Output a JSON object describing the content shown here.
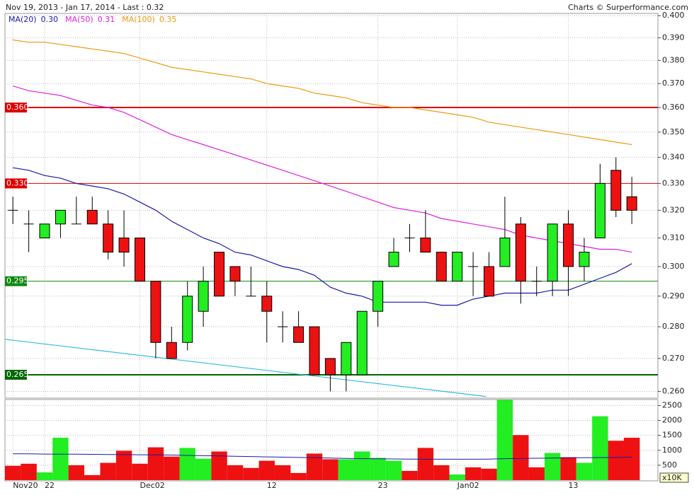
{
  "chart_data": {
    "type": "candlestick",
    "title": "Nov 19, 2013 - Jan 17, 2014 - Last : 0.32",
    "credit": "Charts © Surperformance.com",
    "log_scale": true,
    "grid": true,
    "up_color": "#22ee22",
    "down_color": "#ee1111",
    "categories": [
      "Nov20",
      null,
      "22",
      null,
      null,
      null,
      null,
      null,
      "Dec02",
      null,
      null,
      null,
      null,
      null,
      null,
      null,
      "12",
      null,
      null,
      null,
      null,
      null,
      null,
      "23",
      null,
      null,
      null,
      null,
      "Jan02",
      null,
      null,
      null,
      null,
      null,
      null,
      "13",
      null,
      null,
      null,
      null
    ],
    "open": [
      0.32,
      0.315,
      0.31,
      0.315,
      0.315,
      0.32,
      0.315,
      0.31,
      0.31,
      0.295,
      0.275,
      0.275,
      0.285,
      0.305,
      0.3,
      0.29,
      0.29,
      0.28,
      0.28,
      0.28,
      0.27,
      0.265,
      0.265,
      0.285,
      0.3,
      0.31,
      0.31,
      0.305,
      0.295,
      0.3,
      0.3,
      0.3,
      0.315,
      0.295,
      0.295,
      0.315,
      0.3,
      0.31,
      0.335,
      0.325
    ],
    "high": [
      0.325,
      0.32,
      0.315,
      0.32,
      0.325,
      0.325,
      0.32,
      0.32,
      0.31,
      0.295,
      0.28,
      0.295,
      0.3,
      0.305,
      0.3,
      0.3,
      0.295,
      0.285,
      0.285,
      0.28,
      0.27,
      0.275,
      0.285,
      0.295,
      0.31,
      0.315,
      0.32,
      0.305,
      0.305,
      0.305,
      0.305,
      0.325,
      0.3175,
      0.3,
      0.315,
      0.32,
      0.31,
      0.3375,
      0.34,
      0.3325
    ],
    "low": [
      0.315,
      0.305,
      0.31,
      0.31,
      0.315,
      0.315,
      0.3025,
      0.3,
      0.295,
      0.27,
      0.27,
      0.2725,
      0.28,
      0.29,
      0.29,
      0.29,
      0.275,
      0.275,
      0.275,
      0.265,
      0.26,
      0.26,
      0.265,
      0.28,
      0.3,
      0.305,
      0.305,
      0.295,
      0.295,
      0.29,
      0.29,
      0.3,
      0.2875,
      0.29,
      0.29,
      0.29,
      0.295,
      0.31,
      0.3175,
      0.315
    ],
    "close": [
      0.32,
      0.315,
      0.315,
      0.32,
      0.315,
      0.315,
      0.305,
      0.305,
      0.295,
      0.275,
      0.27,
      0.29,
      0.295,
      0.29,
      0.295,
      0.29,
      0.285,
      0.28,
      0.275,
      0.265,
      0.265,
      0.275,
      0.285,
      0.295,
      0.305,
      0.31,
      0.305,
      0.295,
      0.305,
      0.3,
      0.29,
      0.31,
      0.295,
      0.295,
      0.315,
      0.3,
      0.305,
      0.33,
      0.32,
      0.32
    ],
    "series": [
      {
        "name": "MA(20)",
        "color": "#1a1aa8",
        "last": {
          "value": 0.3,
          "label": "0.30"
        },
        "values": [
          0.336,
          0.335,
          0.333,
          0.332,
          0.33,
          0.329,
          0.328,
          0.326,
          0.323,
          0.32,
          0.316,
          0.313,
          0.31,
          0.308,
          0.305,
          0.304,
          0.302,
          0.3,
          0.299,
          0.297,
          0.293,
          0.291,
          0.29,
          0.288,
          0.288,
          0.288,
          0.288,
          0.287,
          0.287,
          0.289,
          0.29,
          0.291,
          0.291,
          0.291,
          0.292,
          0.292,
          0.294,
          0.296,
          0.298,
          0.301
        ]
      },
      {
        "name": "MA(50)",
        "color": "#dd22dd",
        "last": {
          "value": 0.31,
          "label": "0.31"
        },
        "values": [
          0.369,
          0.367,
          0.366,
          0.365,
          0.363,
          0.361,
          0.36,
          0.358,
          0.355,
          0.352,
          0.349,
          0.347,
          0.345,
          0.343,
          0.341,
          0.339,
          0.337,
          0.335,
          0.333,
          0.331,
          0.329,
          0.327,
          0.325,
          0.323,
          0.321,
          0.32,
          0.319,
          0.317,
          0.316,
          0.315,
          0.314,
          0.313,
          0.311,
          0.31,
          0.309,
          0.308,
          0.307,
          0.306,
          0.306,
          0.305
        ]
      },
      {
        "name": "MA(100)",
        "color": "#ee9911",
        "last": {
          "value": 0.35,
          "label": "0.35"
        },
        "values": [
          0.389,
          0.388,
          0.388,
          0.387,
          0.386,
          0.385,
          0.384,
          0.383,
          0.381,
          0.379,
          0.377,
          0.376,
          0.375,
          0.374,
          0.373,
          0.372,
          0.37,
          0.369,
          0.368,
          0.366,
          0.365,
          0.364,
          0.362,
          0.361,
          0.36,
          0.36,
          0.359,
          0.358,
          0.357,
          0.356,
          0.354,
          0.353,
          0.352,
          0.351,
          0.35,
          0.349,
          0.348,
          0.347,
          0.346,
          0.345
        ]
      }
    ],
    "levels": [
      {
        "value": 0.36,
        "label": "0.360",
        "color": "#dd0000",
        "width": 2
      },
      {
        "value": 0.33,
        "label": "0.330",
        "color": "#dd0000",
        "width": 1
      },
      {
        "value": 0.295,
        "label": "0.295",
        "color": "#118811",
        "width": 1
      },
      {
        "value": 0.265,
        "label": "0.265",
        "color": "#006600",
        "width": 2
      }
    ],
    "trend_line": {
      "color": "#33bbdd",
      "x": [
        -0.5,
        29.8
      ],
      "values": [
        0.276,
        0.2585
      ]
    },
    "ylim": [
      0.258,
      0.401
    ],
    "yticks": [
      {
        "value": 0.4,
        "label": "0.400"
      },
      {
        "value": 0.39,
        "label": "0.390"
      },
      {
        "value": 0.38,
        "label": "0.380"
      },
      {
        "value": 0.37,
        "label": "0.370"
      },
      {
        "value": 0.36,
        "label": "0.360"
      },
      {
        "value": 0.35,
        "label": "0.350"
      },
      {
        "value": 0.34,
        "label": "0.340"
      },
      {
        "value": 0.33,
        "label": "0.330"
      },
      {
        "value": 0.32,
        "label": "0.320"
      },
      {
        "value": 0.31,
        "label": "0.310"
      },
      {
        "value": 0.3,
        "label": "0.300"
      },
      {
        "value": 0.29,
        "label": "0.290"
      },
      {
        "value": 0.28,
        "label": "0.280"
      },
      {
        "value": 0.27,
        "label": "0.270"
      },
      {
        "value": 0.26,
        "label": "0.260"
      }
    ],
    "volume": {
      "unit_label": "x10K",
      "ylim": [
        0,
        2700
      ],
      "yticks": [
        500,
        1000,
        1500,
        2000,
        2500
      ],
      "values": [
        480,
        550,
        260,
        1420,
        500,
        170,
        580,
        985,
        550,
        1100,
        790,
        1080,
        720,
        960,
        500,
        410,
        650,
        500,
        240,
        890,
        700,
        700,
        960,
        745,
        650,
        310,
        1080,
        500,
        190,
        430,
        385,
        2690,
        1510,
        430,
        910,
        770,
        580,
        2140,
        1320,
        1420
      ],
      "ma": {
        "color": "#1a1aa8",
        "values": [
          880,
          880,
          875,
          870,
          870,
          865,
          860,
          855,
          850,
          845,
          840,
          830,
          820,
          810,
          800,
          790,
          780,
          770,
          760,
          750,
          740,
          730,
          720,
          715,
          710,
          705,
          700,
          700,
          700,
          700,
          705,
          720,
          730,
          735,
          740,
          745,
          750,
          755,
          760,
          770
        ]
      }
    }
  }
}
